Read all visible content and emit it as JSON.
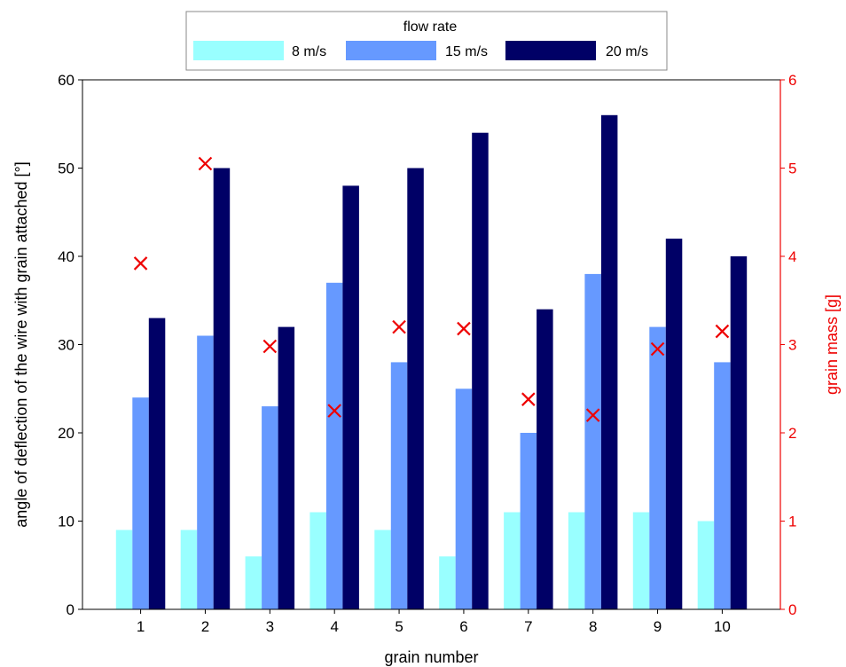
{
  "chart_data": {
    "type": "bar",
    "title": "",
    "xlabel": "grain number",
    "ylabel": "angle of deflection of the wire with grain attached [°]",
    "y2label": "grain mass [g]",
    "categories": [
      "1",
      "2",
      "3",
      "4",
      "5",
      "6",
      "7",
      "8",
      "9",
      "10"
    ],
    "ylim": [
      0,
      60
    ],
    "y2lim": [
      0,
      6
    ],
    "yticks": [
      "0",
      "10",
      "20",
      "30",
      "40",
      "50",
      "60"
    ],
    "y2ticks": [
      "0",
      "1",
      "2",
      "3",
      "4",
      "5",
      "6"
    ],
    "grid": false,
    "legend": {
      "title": "flow rate",
      "placement": "top-center"
    },
    "series": [
      {
        "name": "8 m/s",
        "color": "#99ffff",
        "values": [
          9,
          9,
          6,
          11,
          9,
          6,
          11,
          11,
          11,
          10
        ]
      },
      {
        "name": "15 m/s",
        "color": "#6699ff",
        "values": [
          24,
          31,
          23,
          37,
          28,
          25,
          20,
          38,
          32,
          28
        ]
      },
      {
        "name": "20 m/s",
        "color": "#000066",
        "values": [
          33,
          50,
          32,
          48,
          50,
          54,
          34,
          56,
          42,
          40
        ]
      }
    ],
    "scatter_series": {
      "marker": "x",
      "color": "#ee0000",
      "axis": "right",
      "values": [
        3.92,
        5.05,
        2.98,
        2.25,
        3.2,
        3.18,
        2.38,
        2.2,
        2.95,
        3.15
      ]
    }
  }
}
